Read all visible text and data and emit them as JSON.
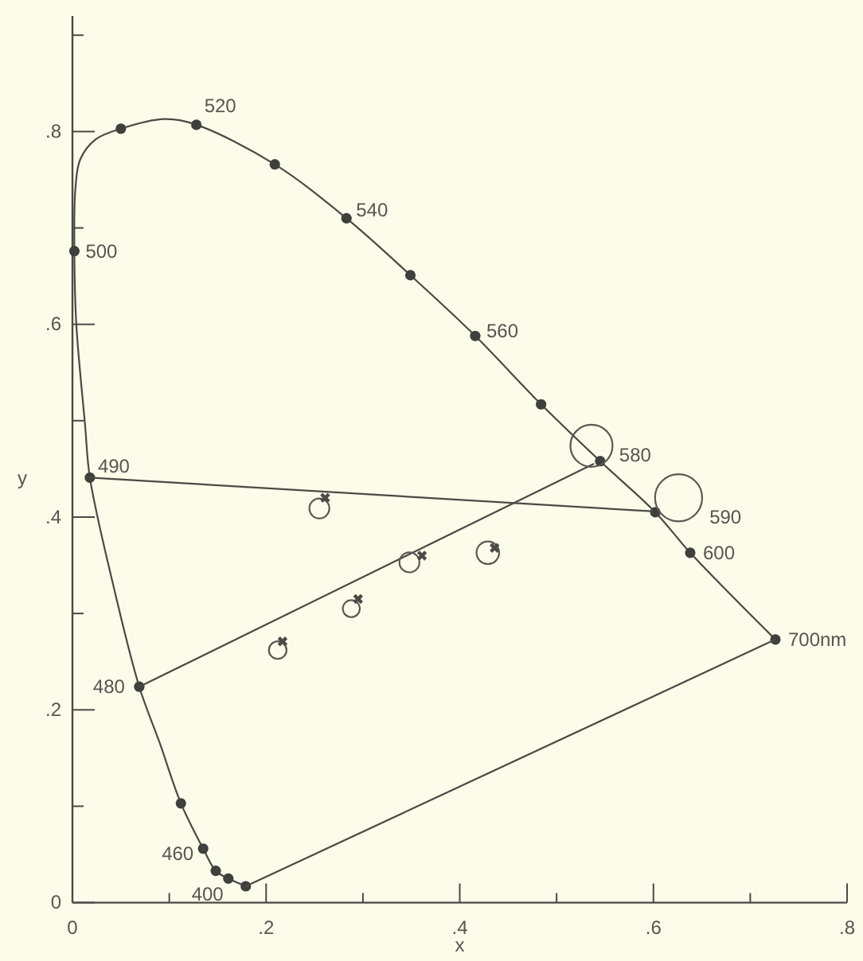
{
  "chart_data": {
    "type": "line",
    "xlabel": "x",
    "ylabel": "y",
    "xlim": [
      0,
      0.8
    ],
    "xticks": [
      0,
      {
        "value": 0.1,
        "label": null
      },
      {
        "value": 0.2,
        "label": ".2"
      },
      {
        "value": 0.3,
        "label": null
      },
      {
        "value": 0.4,
        "label": ".4"
      },
      {
        "value": 0.5,
        "label": null
      },
      {
        "value": 0.6,
        "label": ".6"
      },
      {
        "value": 0.7,
        "label": null
      },
      {
        "value": 0.8,
        "label": ".8"
      }
    ],
    "ylim": [
      0,
      0.92
    ],
    "yticks": [
      0,
      {
        "value": 0.1,
        "label": null
      },
      {
        "value": 0.2,
        "label": ".2"
      },
      {
        "value": 0.3,
        "label": null
      },
      {
        "value": 0.4,
        "label": ".4"
      },
      {
        "value": 0.5,
        "label": null
      },
      {
        "value": 0.6,
        "label": ".6"
      },
      {
        "value": 0.7,
        "label": null
      },
      {
        "value": 0.8,
        "label": ".8"
      },
      {
        "value": 0.9,
        "label": null
      }
    ],
    "series": [
      {
        "color": "#4a4a46",
        "x": [
          0.179,
          0.161,
          0.148,
          0.135,
          0.112,
          0.09,
          0.069,
          0.042,
          0.018,
          0.013,
          0.004,
          0.002,
          0.003,
          0.008,
          0.024,
          0.05,
          0.095,
          0.128,
          0.209,
          0.283,
          0.349,
          0.416,
          0.484,
          0.545,
          0.602,
          0.638,
          0.726
        ],
        "values": [
          0.017,
          0.025,
          0.033,
          0.056,
          0.103,
          0.166,
          0.224,
          0.33,
          0.441,
          0.496,
          0.6,
          0.676,
          0.74,
          0.771,
          0.792,
          0.803,
          0.813,
          0.807,
          0.766,
          0.71,
          0.651,
          0.588,
          0.517,
          0.458,
          0.405,
          0.363,
          0.273
        ]
      },
      {
        "type": "scatter",
        "marker": "circle",
        "color": "#3f3f3c",
        "x": [
          0.179,
          0.161,
          0.148,
          0.135,
          0.112,
          0.069,
          0.018,
          0.002,
          0.05,
          0.128,
          0.209,
          0.283,
          0.349,
          0.416,
          0.484,
          0.545,
          0.602,
          0.638,
          0.726
        ],
        "values": [
          0.017,
          0.025,
          0.033,
          0.056,
          0.103,
          0.224,
          0.441,
          0.676,
          0.803,
          0.807,
          0.766,
          0.71,
          0.651,
          0.588,
          0.517,
          0.458,
          0.405,
          0.363,
          0.273
        ]
      },
      {
        "color": "#4a4a46",
        "x": [
          0.018,
          0.598
        ],
        "values": [
          0.441,
          0.406
        ]
      },
      {
        "color": "#4a4a46",
        "x": [
          0.069,
          0.538
        ],
        "values": [
          0.224,
          0.455
        ]
      },
      {
        "color": "#4a4a46",
        "x": [
          0.179,
          0.726
        ],
        "values": [
          0.017,
          0.273
        ]
      },
      {
        "type": "bubble",
        "color": "#5a5a55",
        "x": [
          0.255,
          0.348,
          0.429,
          0.288,
          0.212,
          0.536,
          0.626
        ],
        "values": [
          0.409,
          0.353,
          0.363,
          0.305,
          0.262,
          0.474,
          0.42
        ],
        "sizes": [
          0.18,
          0.18,
          0.23,
          0.13,
          0.14,
          0.8,
          1
        ]
      },
      {
        "type": "scatter",
        "marker": "cross",
        "color": "#4a4a46",
        "x": [
          0.261,
          0.361,
          0.436,
          0.295,
          0.217
        ],
        "values": [
          0.42,
          0.36,
          0.368,
          0.315,
          0.271
        ]
      }
    ],
    "annotations": [
      {
        "text": "400",
        "x": 0.179,
        "y": 0.017
      },
      {
        "text": "460",
        "x": 0.135,
        "y": 0.056
      },
      {
        "text": "480",
        "x": 0.069,
        "y": 0.224
      },
      {
        "text": "490",
        "x": 0.018,
        "y": 0.441
      },
      {
        "text": "500",
        "x": 0.002,
        "y": 0.676
      },
      {
        "text": "520",
        "x": 0.128,
        "y": 0.807
      },
      {
        "text": "540",
        "x": 0.283,
        "y": 0.71
      },
      {
        "text": "560",
        "x": 0.416,
        "y": 0.588
      },
      {
        "text": "580",
        "x": 0.545,
        "y": 0.458
      },
      {
        "text": "590",
        "x": 0.602,
        "y": 0.405
      },
      {
        "text": "600",
        "x": 0.638,
        "y": 0.363
      },
      {
        "text": "700nm",
        "x": 0.726,
        "y": 0.273
      }
    ]
  }
}
